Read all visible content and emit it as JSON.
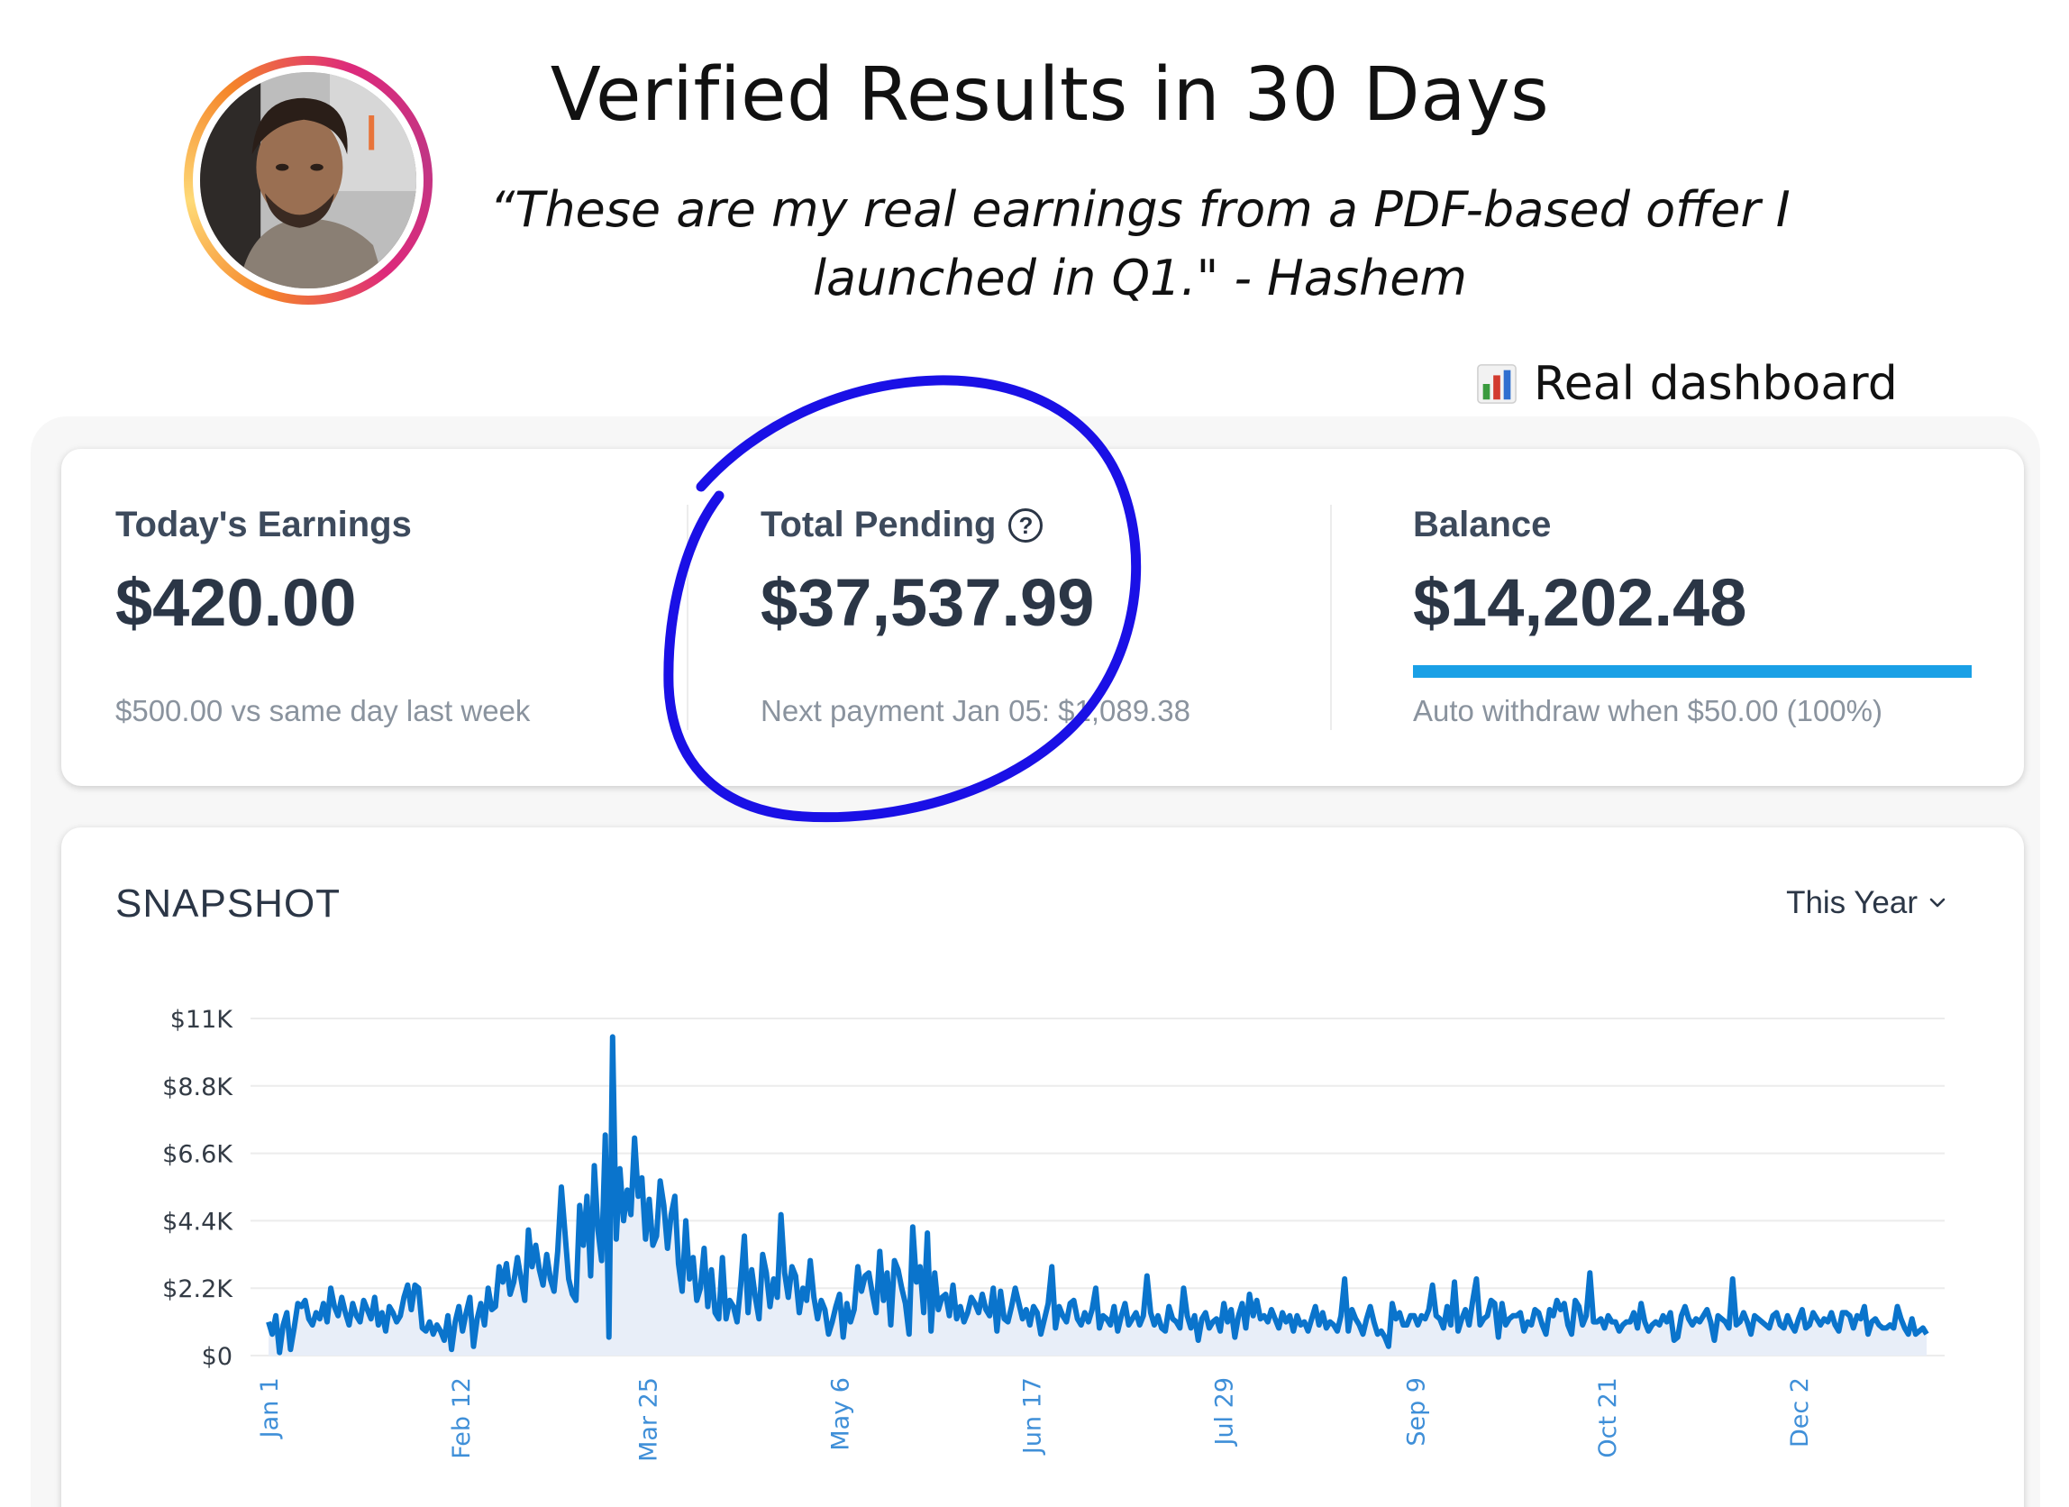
{
  "header": {
    "title": "Verified Results in 30 Days",
    "quote": "“These are my real earnings from a PDF-based offer I launched in Q1.\" - Hashem",
    "badge_label": "Real dashboard",
    "badge_icon": "bar-chart-icon"
  },
  "stats": {
    "today": {
      "label": "Today's Earnings",
      "value": "$420.00",
      "sub": "$500.00 vs same day last week"
    },
    "pending": {
      "label": "Total Pending",
      "help_icon": "?",
      "value": "$37,537.99",
      "sub": "Next payment Jan 05: $1,089.38"
    },
    "balance": {
      "label": "Balance",
      "value": "$14,202.48",
      "sub": "Auto withdraw when $50.00 (100%)",
      "progress": 1.0
    }
  },
  "snapshot": {
    "title": "SNAPSHOT",
    "range_label": "This Year"
  },
  "colors": {
    "accent_blue": "#0a74cc",
    "area_fill": "#e8eef8",
    "progress": "#1aa0e6",
    "scribble": "#1a10e6"
  },
  "chart_data": {
    "type": "line",
    "title": "",
    "xlabel": "",
    "ylabel": "",
    "ylim": [
      0,
      11000
    ],
    "y_ticks": [
      "$0",
      "$2.2K",
      "$4.4K",
      "$6.6K",
      "$8.8K",
      "$11K"
    ],
    "y_tick_values": [
      0,
      2200,
      4400,
      6600,
      8800,
      11000
    ],
    "x_tick_labels": [
      "Jan 1",
      "Feb 12",
      "Mar 25",
      "May 6",
      "Jun 17",
      "Jul 29",
      "Sep 9",
      "Oct 21",
      "Dec 2"
    ],
    "x_tick_days": [
      0,
      42,
      83,
      125,
      167,
      209,
      251,
      293,
      335
    ],
    "grid": true,
    "legend": "none",
    "series": [
      {
        "values": [
          1100,
          700,
          1300,
          100,
          1000,
          1400,
          200,
          900,
          1700,
          1600,
          1800,
          1200,
          1000,
          1400,
          1200,
          1700,
          1100,
          2200,
          1600,
          1300,
          1900,
          1400,
          1000,
          1700,
          1300,
          1100,
          1800,
          1500,
          1200,
          1900,
          1000,
          1400,
          800,
          1600,
          1400,
          1100,
          1300,
          1900,
          2300,
          1500,
          2300,
          2200,
          900,
          800,
          1100,
          700,
          1000,
          800,
          500,
          1300,
          200,
          1100,
          1600,
          800,
          1400,
          1900,
          300,
          1200,
          1700,
          1000,
          2200,
          1500,
          1600,
          2900,
          2400,
          3000,
          2000,
          2400,
          3200,
          2500,
          1800,
          4100,
          2900,
          3600,
          2800,
          2300,
          3300,
          2500,
          2100,
          3400,
          5500,
          4000,
          2500,
          2000,
          1800,
          4900,
          3600,
          5200,
          2600,
          6200,
          4100,
          3100,
          7200,
          600,
          10400,
          3800,
          6100,
          4400,
          5400,
          4600,
          7100,
          5200,
          5800,
          3800,
          5100,
          3600,
          3900,
          5700,
          4900,
          3500,
          4600,
          5200,
          3000,
          2100,
          4400,
          2500,
          3200,
          1800,
          2200,
          3500,
          1600,
          2800,
          1400,
          1200,
          3200,
          1200,
          1800,
          1600,
          1100,
          2300,
          3900,
          1400,
          2800,
          1900,
          1200,
          3300,
          2700,
          1600,
          2500,
          1900,
          4600,
          2700,
          1900,
          2900,
          2600,
          1400,
          2200,
          1800,
          3100,
          1900,
          1200,
          1800,
          1500,
          700,
          1100,
          1600,
          2000,
          600,
          1700,
          1100,
          1500,
          2900,
          2100,
          2600,
          2700,
          2000,
          1400,
          3400,
          1800,
          2700,
          1000,
          3100,
          2800,
          2200,
          1700,
          700,
          4200,
          2400,
          2900,
          1400,
          4000,
          800,
          2700,
          1500,
          1900,
          2000,
          1300,
          2300,
          1200,
          1600,
          1100,
          1400,
          1900,
          1700,
          1400,
          2000,
          1500,
          1300,
          2200,
          800,
          2100,
          1200,
          1100,
          1600,
          2200,
          1700,
          1200,
          1500,
          1000,
          1600,
          1400,
          700,
          1200,
          1700,
          2900,
          900,
          1600,
          1300,
          1100,
          1700,
          1800,
          1200,
          1000,
          1400,
          1100,
          1500,
          2200,
          900,
          1300,
          1200,
          1000,
          1600,
          800,
          1300,
          1700,
          1000,
          1200,
          1400,
          1000,
          1300,
          2600,
          1400,
          1000,
          1300,
          900,
          800,
          1600,
          1200,
          1100,
          900,
          2200,
          1300,
          900,
          1300,
          500,
          1200,
          1400,
          900,
          1100,
          1200,
          800,
          1700,
          1100,
          1500,
          600,
          1300,
          1700,
          900,
          2000,
          1300,
          1800,
          1200,
          1300,
          1100,
          1500,
          1200,
          900,
          1400,
          1100,
          1300,
          800,
          1300,
          1000,
          1100,
          800,
          1200,
          1600,
          1000,
          1400,
          900,
          1100,
          1000,
          800,
          1300,
          2500,
          800,
          1500,
          1200,
          1000,
          700,
          1200,
          1600,
          1100,
          700,
          800,
          600,
          300,
          1700,
          1200,
          1400,
          1000,
          1000,
          1300,
          1300,
          1000,
          1300,
          1200,
          1500,
          2300,
          1300,
          1200,
          900,
          1600,
          1000,
          2400,
          800,
          1200,
          1500,
          1000,
          1800,
          2500,
          1000,
          1200,
          1300,
          1800,
          1700,
          600,
          1700,
          1000,
          1200,
          1300,
          1300,
          1400,
          800,
          1100,
          1000,
          1500,
          1400,
          1000,
          700,
          1500,
          1300,
          1800,
          1500,
          1700,
          1000,
          700,
          1800,
          1600,
          1000,
          1300,
          2700,
          1100,
          1100,
          1200,
          900,
          1300,
          1100,
          1100,
          800,
          1000,
          1100,
          1100,
          1400,
          900,
          1700,
          1100,
          800,
          1000,
          1100,
          1000,
          1300,
          1100,
          1400,
          500,
          600,
          1300,
          1600,
          1200,
          1000,
          1200,
          1100,
          1300,
          1500,
          1100,
          500,
          1300,
          1200,
          1100,
          900,
          2500,
          1000,
          1100,
          1400,
          1100,
          700,
          1300,
          1200,
          1100,
          1000,
          900,
          1300,
          1400,
          1000,
          900,
          1300,
          1000,
          800,
          1200,
          1500,
          900,
          1000,
          1400,
          1200,
          1000,
          1200,
          1100,
          1400,
          1000,
          800,
          1400,
          1400,
          1300,
          900,
          1300,
          1200,
          1600,
          700,
          1100,
          1200,
          1000,
          900,
          900,
          1000,
          900,
          1600,
          1200,
          900,
          700,
          1200,
          700,
          800,
          900,
          700
        ]
      }
    ]
  }
}
